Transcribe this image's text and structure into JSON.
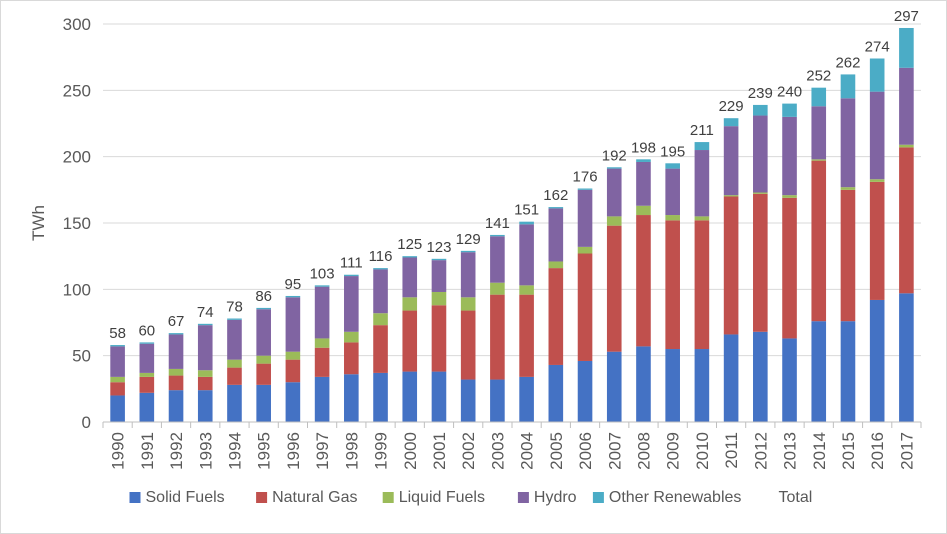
{
  "chart_data": {
    "type": "bar",
    "stacked": true,
    "title": "",
    "xlabel": "",
    "ylabel": "TWh",
    "ylim": [
      0,
      300
    ],
    "yticks": [
      0,
      50,
      100,
      150,
      200,
      250,
      300
    ],
    "grid": true,
    "legend_position": "bottom",
    "categories": [
      "1990",
      "1991",
      "1992",
      "1993",
      "1994",
      "1995",
      "1996",
      "1997",
      "1998",
      "1999",
      "2000",
      "2001",
      "2002",
      "2003",
      "2004",
      "2005",
      "2006",
      "2007",
      "2008",
      "2009",
      "2010",
      "2011",
      "2012",
      "2013",
      "2014",
      "2015",
      "2016",
      "2017"
    ],
    "series": [
      {
        "name": "Solid Fuels",
        "color": "#4472c4",
        "values": [
          20,
          22,
          24,
          24,
          28,
          28,
          30,
          34,
          36,
          37,
          38,
          38,
          32,
          32,
          34,
          43,
          46,
          53,
          57,
          55,
          55,
          66,
          68,
          63,
          76,
          76,
          92,
          97
        ]
      },
      {
        "name": "Natural Gas",
        "color": "#c0504d",
        "values": [
          10,
          12,
          11,
          10,
          13,
          16,
          17,
          22,
          24,
          36,
          46,
          50,
          52,
          64,
          62,
          73,
          81,
          95,
          99,
          97,
          97,
          104,
          104,
          106,
          121,
          99,
          89,
          110
        ]
      },
      {
        "name": "Liquid Fuels",
        "color": "#9bbb59",
        "values": [
          4,
          3,
          5,
          5,
          6,
          6,
          6,
          7,
          8,
          9,
          10,
          10,
          10,
          9,
          7,
          5,
          5,
          7,
          7,
          4,
          3,
          1,
          1,
          2,
          1,
          2,
          2,
          2
        ]
      },
      {
        "name": "Hydro",
        "color": "#8064a2",
        "values": [
          23,
          22,
          26,
          34,
          30,
          35,
          41,
          39,
          42,
          33,
          30,
          24,
          34,
          35,
          46,
          40,
          43,
          36,
          33,
          35,
          50,
          52,
          58,
          59,
          40,
          67,
          66,
          58
        ]
      },
      {
        "name": "Other Renewables",
        "color": "#4bacc6",
        "values": [
          1,
          1,
          1,
          1,
          1,
          1,
          1,
          1,
          1,
          1,
          1,
          1,
          1,
          1,
          2,
          1,
          1,
          1,
          2,
          4,
          6,
          6,
          8,
          10,
          14,
          18,
          25,
          30
        ]
      }
    ],
    "totals": {
      "name": "Total",
      "values": [
        58,
        60,
        67,
        74,
        78,
        86,
        95,
        103,
        111,
        116,
        125,
        123,
        129,
        141,
        151,
        162,
        176,
        192,
        198,
        195,
        211,
        229,
        239,
        240,
        252,
        262,
        274,
        297
      ]
    }
  }
}
